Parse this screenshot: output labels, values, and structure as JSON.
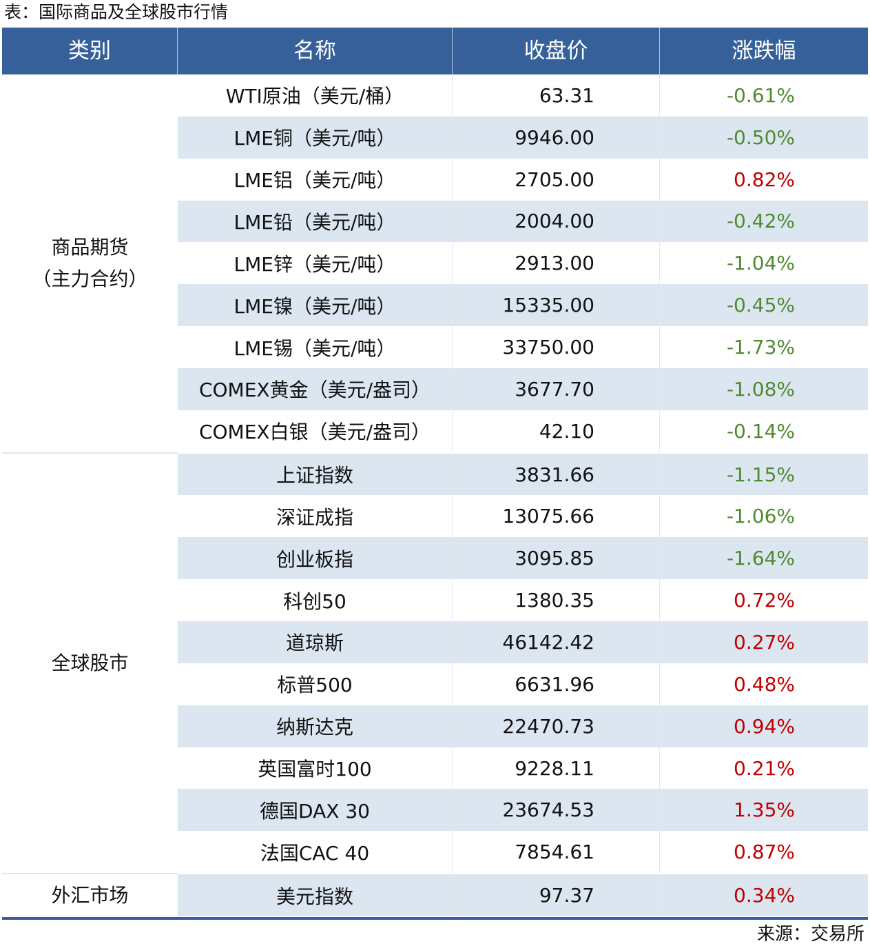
{
  "title": "表：国际商品及全球股市行情",
  "headers": [
    "类别",
    "名称",
    "收盘价",
    "涨跌幅"
  ],
  "colors": {
    "header_bg": "#36609a",
    "alt_row": "#dce6f1",
    "up": "#c00000",
    "down": "#4f8a32"
  },
  "groups": [
    {
      "category": "商品期货\n（主力合约）",
      "rows": [
        {
          "name": "WTI原油（美元/桶）",
          "close": "63.31",
          "change": "-0.61%",
          "direction": "down"
        },
        {
          "name": "LME铜（美元/吨）",
          "close": "9946.00",
          "change": "-0.50%",
          "direction": "down"
        },
        {
          "name": "LME铝（美元/吨）",
          "close": "2705.00",
          "change": "0.82%",
          "direction": "up"
        },
        {
          "name": "LME铅（美元/吨）",
          "close": "2004.00",
          "change": "-0.42%",
          "direction": "down"
        },
        {
          "name": "LME锌（美元/吨）",
          "close": "2913.00",
          "change": "-1.04%",
          "direction": "down"
        },
        {
          "name": "LME镍（美元/吨）",
          "close": "15335.00",
          "change": "-0.45%",
          "direction": "down"
        },
        {
          "name": "LME锡（美元/吨）",
          "close": "33750.00",
          "change": "-1.73%",
          "direction": "down"
        },
        {
          "name": "COMEX黄金（美元/盎司）",
          "close": "3677.70",
          "change": "-1.08%",
          "direction": "down"
        },
        {
          "name": "COMEX白银（美元/盎司）",
          "close": "42.10",
          "change": "-0.14%",
          "direction": "down"
        }
      ]
    },
    {
      "category": "全球股市",
      "rows": [
        {
          "name": "上证指数",
          "close": "3831.66",
          "change": "-1.15%",
          "direction": "down"
        },
        {
          "name": "深证成指",
          "close": "13075.66",
          "change": "-1.06%",
          "direction": "down"
        },
        {
          "name": "创业板指",
          "close": "3095.85",
          "change": "-1.64%",
          "direction": "down"
        },
        {
          "name": "科创50",
          "close": "1380.35",
          "change": "0.72%",
          "direction": "up"
        },
        {
          "name": "道琼斯",
          "close": "46142.42",
          "change": "0.27%",
          "direction": "up"
        },
        {
          "name": "标普500",
          "close": "6631.96",
          "change": "0.48%",
          "direction": "up"
        },
        {
          "name": "纳斯达克",
          "close": "22470.73",
          "change": "0.94%",
          "direction": "up"
        },
        {
          "name": "英国富时100",
          "close": "9228.11",
          "change": "0.21%",
          "direction": "up"
        },
        {
          "name": "德国DAX 30",
          "close": "23674.53",
          "change": "1.35%",
          "direction": "up"
        },
        {
          "name": "法国CAC 40",
          "close": "7854.61",
          "change": "0.87%",
          "direction": "up"
        }
      ]
    },
    {
      "category": "外汇市场",
      "rows": [
        {
          "name": "美元指数",
          "close": "97.37",
          "change": "0.34%",
          "direction": "up"
        }
      ]
    }
  ],
  "source": "来源：交易所"
}
